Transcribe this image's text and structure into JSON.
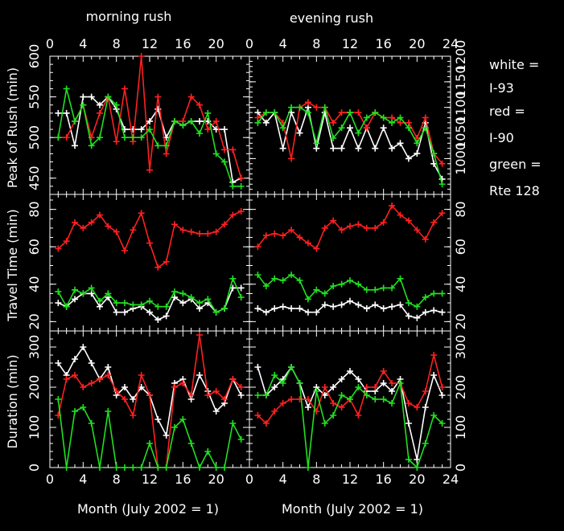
{
  "chart_data": {
    "type": "line",
    "x_label": "Month (July 2002 = 1)",
    "x_ticks": [
      0,
      4,
      8,
      12,
      16,
      20,
      24
    ],
    "xlim": [
      0,
      24
    ],
    "columns": [
      "morning rush",
      "evening rush"
    ],
    "legend": [
      "white =",
      "I-93",
      "red =",
      "I-90",
      "green =",
      "Rte 128"
    ],
    "colors": {
      "I-93": "#ffffff",
      "I-90": "#ff2020",
      "Rte 128": "#20e020"
    },
    "rows": [
      {
        "ylabel": "Peak of Rush (min)",
        "left": {
          "ylim": [
            430,
            600
          ],
          "ticks": [
            450,
            500,
            550,
            600
          ]
        },
        "right": {
          "ylim": [
            930,
            1200
          ],
          "ticks": [
            1000,
            1050,
            1100,
            1150,
            1200
          ]
        }
      },
      {
        "ylabel": "Travel Time (min)",
        "ylim": [
          15,
          88
        ],
        "ticks": [
          20,
          40,
          60,
          80
        ]
      },
      {
        "ylabel": "Duration (min)",
        "ylim": [
          0,
          340
        ],
        "ticks": [
          0,
          100,
          200,
          300
        ]
      }
    ],
    "panels": [
      {
        "id": "peak-morning",
        "row": 0,
        "col": 0,
        "series": [
          {
            "name": "I-93",
            "x": [
              1,
              2,
              3,
              4,
              5,
              6,
              7,
              8,
              9,
              10,
              11,
              12,
              13,
              14,
              15,
              16,
              17,
              18,
              19,
              20,
              21,
              22,
              23
            ],
            "y": [
              530,
              530,
              490,
              550,
              550,
              540,
              550,
              535,
              510,
              510,
              510,
              520,
              535,
              500,
              520,
              515,
              520,
              520,
              520,
              510,
              510,
              445,
              450
            ]
          },
          {
            "name": "I-90",
            "x": [
              1,
              2,
              3,
              4,
              5,
              6,
              7,
              8,
              9,
              10,
              11,
              12,
              13,
              14,
              15,
              16,
              17,
              18,
              19,
              20,
              21,
              22,
              23
            ],
            "y": [
              500,
              500,
              520,
              540,
              500,
              530,
              550,
              495,
              560,
              495,
              605,
              460,
              550,
              480,
              520,
              520,
              550,
              540,
              510,
              520,
              485,
              485,
              450
            ]
          },
          {
            "name": "Rte 128",
            "x": [
              1,
              2,
              3,
              4,
              5,
              6,
              7,
              8,
              9,
              10,
              11,
              12,
              13,
              14,
              15,
              16,
              17,
              18,
              19,
              20,
              21,
              22,
              23
            ],
            "y": [
              500,
              560,
              520,
              540,
              490,
              500,
              550,
              540,
              500,
              500,
              500,
              510,
              490,
              490,
              520,
              515,
              520,
              505,
              530,
              480,
              470,
              440,
              440
            ]
          }
        ]
      },
      {
        "id": "peak-evening",
        "row": 0,
        "col": 1,
        "series": [
          {
            "name": "I-93",
            "x": [
              1,
              2,
              3,
              4,
              5,
              6,
              7,
              8,
              9,
              10,
              11,
              12,
              13,
              14,
              15,
              16,
              17,
              18,
              19,
              20,
              21,
              22,
              23
            ],
            "y": [
              1090,
              1070,
              1090,
              1020,
              1090,
              1050,
              1100,
              1020,
              1090,
              1020,
              1020,
              1060,
              1020,
              1060,
              1020,
              1060,
              1020,
              1030,
              1000,
              1010,
              1070,
              990,
              960
            ]
          },
          {
            "name": "I-90",
            "x": [
              1,
              2,
              3,
              4,
              5,
              6,
              7,
              8,
              9,
              10,
              11,
              12,
              13,
              14,
              15,
              16,
              17,
              18,
              19,
              20,
              21,
              22,
              23
            ],
            "y": [
              1080,
              1090,
              1090,
              1070,
              1000,
              1100,
              1110,
              1100,
              1100,
              1070,
              1090,
              1090,
              1090,
              1060,
              1090,
              1080,
              1080,
              1070,
              1070,
              1040,
              1080,
              1010,
              990
            ]
          },
          {
            "name": "Rte 128",
            "x": [
              1,
              2,
              3,
              4,
              5,
              6,
              7,
              8,
              9,
              10,
              11,
              12,
              13,
              14,
              15,
              16,
              17,
              18,
              19,
              20,
              21,
              22,
              23
            ],
            "y": [
              1070,
              1090,
              1090,
              1060,
              1100,
              1100,
              1090,
              1030,
              1100,
              1040,
              1060,
              1090,
              1050,
              1080,
              1090,
              1080,
              1070,
              1080,
              1060,
              1030,
              1060,
              1010,
              950
            ]
          }
        ]
      },
      {
        "id": "travel-morning",
        "row": 1,
        "col": 0,
        "series": [
          {
            "name": "I-93",
            "x": [
              1,
              2,
              3,
              4,
              5,
              6,
              7,
              8,
              9,
              10,
              11,
              12,
              13,
              14,
              15,
              16,
              17,
              18,
              19,
              20,
              21,
              22,
              23
            ],
            "y": [
              30,
              28,
              32,
              35,
              35,
              28,
              33,
              25,
              25,
              27,
              28,
              25,
              21,
              23,
              33,
              30,
              32,
              27,
              30,
              25,
              27,
              38,
              38
            ]
          },
          {
            "name": "I-90",
            "x": [
              1,
              2,
              3,
              4,
              5,
              6,
              7,
              8,
              9,
              10,
              11,
              12,
              13,
              14,
              15,
              16,
              17,
              18,
              19,
              20,
              21,
              22,
              23
            ],
            "y": [
              59,
              63,
              73,
              70,
              73,
              77,
              71,
              68,
              58,
              69,
              78,
              62,
              49,
              52,
              72,
              69,
              68,
              67,
              67,
              68,
              72,
              77,
              79
            ]
          },
          {
            "name": "Rte 128",
            "x": [
              1,
              2,
              3,
              4,
              5,
              6,
              7,
              8,
              9,
              10,
              11,
              12,
              13,
              14,
              15,
              16,
              17,
              18,
              19,
              20,
              21,
              22,
              23
            ],
            "y": [
              36,
              28,
              37,
              35,
              38,
              31,
              35,
              30,
              30,
              29,
              29,
              31,
              28,
              28,
              36,
              35,
              33,
              30,
              32,
              25,
              27,
              43,
              33
            ]
          }
        ]
      },
      {
        "id": "travel-evening",
        "row": 1,
        "col": 1,
        "series": [
          {
            "name": "I-93",
            "x": [
              1,
              2,
              3,
              4,
              5,
              6,
              7,
              8,
              9,
              10,
              11,
              12,
              13,
              14,
              15,
              16,
              17,
              18,
              19,
              20,
              21,
              22,
              23
            ],
            "y": [
              27,
              25,
              27,
              28,
              27,
              27,
              25,
              25,
              29,
              28,
              29,
              31,
              29,
              27,
              29,
              27,
              28,
              29,
              23,
              22,
              25,
              26,
              25
            ]
          },
          {
            "name": "I-90",
            "x": [
              1,
              2,
              3,
              4,
              5,
              6,
              7,
              8,
              9,
              10,
              11,
              12,
              13,
              14,
              15,
              16,
              17,
              18,
              19,
              20,
              21,
              22,
              23
            ],
            "y": [
              60,
              66,
              67,
              66,
              69,
              65,
              62,
              59,
              70,
              74,
              69,
              71,
              72,
              70,
              70,
              73,
              82,
              77,
              74,
              69,
              64,
              73,
              78
            ]
          },
          {
            "name": "Rte 128",
            "x": [
              1,
              2,
              3,
              4,
              5,
              6,
              7,
              8,
              9,
              10,
              11,
              12,
              13,
              14,
              15,
              16,
              17,
              18,
              19,
              20,
              21,
              22,
              23
            ],
            "y": [
              45,
              39,
              43,
              42,
              45,
              42,
              32,
              37,
              35,
              39,
              40,
              42,
              40,
              37,
              37,
              38,
              38,
              43,
              30,
              28,
              33,
              35,
              35
            ]
          }
        ]
      },
      {
        "id": "duration-morning",
        "row": 2,
        "col": 0,
        "series": [
          {
            "name": "I-93",
            "x": [
              1,
              2,
              3,
              4,
              5,
              6,
              7,
              8,
              9,
              10,
              11,
              12,
              13,
              14,
              15,
              16,
              17,
              18,
              19,
              20,
              21,
              22,
              23
            ],
            "y": [
              260,
              230,
              270,
              300,
              260,
              220,
              250,
              180,
              200,
              170,
              200,
              180,
              120,
              80,
              210,
              220,
              170,
              230,
              190,
              140,
              160,
              220,
              180
            ]
          },
          {
            "name": "I-90",
            "x": [
              1,
              2,
              3,
              4,
              5,
              6,
              7,
              8,
              9,
              10,
              11,
              12,
              13,
              14,
              15,
              16,
              17,
              18,
              19,
              20,
              21,
              22,
              23
            ],
            "y": [
              130,
              220,
              230,
              200,
              210,
              220,
              230,
              190,
              170,
              130,
              230,
              180,
              0,
              0,
              200,
              210,
              180,
              330,
              180,
              190,
              170,
              220,
              200
            ]
          },
          {
            "name": "Rte 128",
            "x": [
              1,
              2,
              3,
              4,
              5,
              6,
              7,
              8,
              9,
              10,
              11,
              12,
              13,
              14,
              15,
              16,
              17,
              18,
              19,
              20,
              21,
              22,
              23
            ],
            "y": [
              170,
              0,
              140,
              150,
              110,
              0,
              140,
              0,
              0,
              0,
              0,
              60,
              0,
              0,
              100,
              120,
              60,
              0,
              40,
              0,
              0,
              110,
              70
            ]
          }
        ]
      },
      {
        "id": "duration-evening",
        "row": 2,
        "col": 1,
        "series": [
          {
            "name": "I-93",
            "x": [
              1,
              2,
              3,
              4,
              5,
              6,
              7,
              8,
              9,
              10,
              11,
              12,
              13,
              14,
              15,
              16,
              17,
              18,
              19,
              20,
              21,
              22,
              23
            ],
            "y": [
              250,
              180,
              200,
              220,
              250,
              210,
              150,
              200,
              180,
              200,
              220,
              240,
              220,
              190,
              190,
              210,
              190,
              220,
              110,
              20,
              150,
              230,
              180
            ]
          },
          {
            "name": "I-90",
            "x": [
              1,
              2,
              3,
              4,
              5,
              6,
              7,
              8,
              9,
              10,
              11,
              12,
              13,
              14,
              15,
              16,
              17,
              18,
              19,
              20,
              21,
              22,
              23
            ],
            "y": [
              130,
              110,
              140,
              160,
              170,
              170,
              170,
              140,
              200,
              160,
              150,
              170,
              130,
              200,
              200,
              240,
              210,
              210,
              160,
              150,
              190,
              280,
              200
            ]
          },
          {
            "name": "Rte 128",
            "x": [
              1,
              2,
              3,
              4,
              5,
              6,
              7,
              8,
              9,
              10,
              11,
              12,
              13,
              14,
              15,
              16,
              17,
              18,
              19,
              20,
              21,
              22,
              23
            ],
            "y": [
              180,
              180,
              230,
              210,
              250,
              210,
              0,
              190,
              110,
              130,
              180,
              170,
              200,
              180,
              170,
              170,
              160,
              210,
              20,
              0,
              60,
              130,
              110
            ]
          }
        ]
      }
    ]
  }
}
